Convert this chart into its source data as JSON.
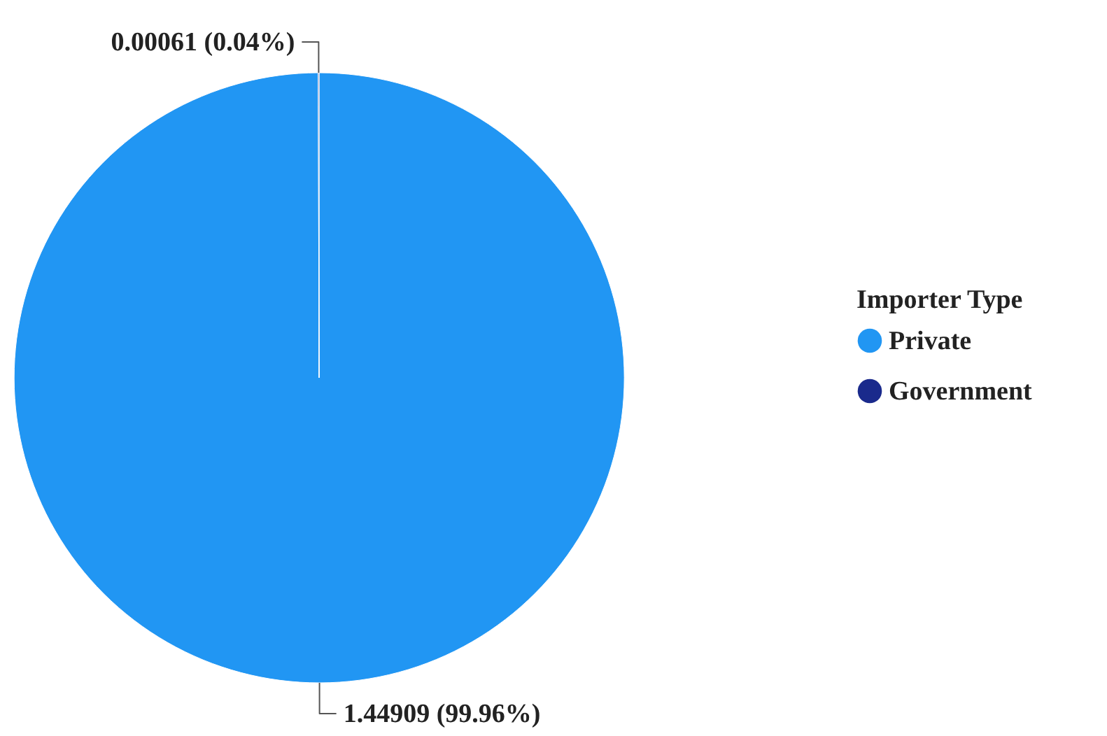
{
  "chart_data": {
    "type": "pie",
    "legend_title": "Importer Type",
    "legend": "right",
    "categories": [
      "Private",
      "Government"
    ],
    "values": [
      1.44909,
      0.00061
    ],
    "colors": [
      "#2196f3",
      "#1a2a8c"
    ],
    "value_labels": [
      "1.44909 (99.96%)",
      "0.00061 (0.04%)"
    ]
  }
}
